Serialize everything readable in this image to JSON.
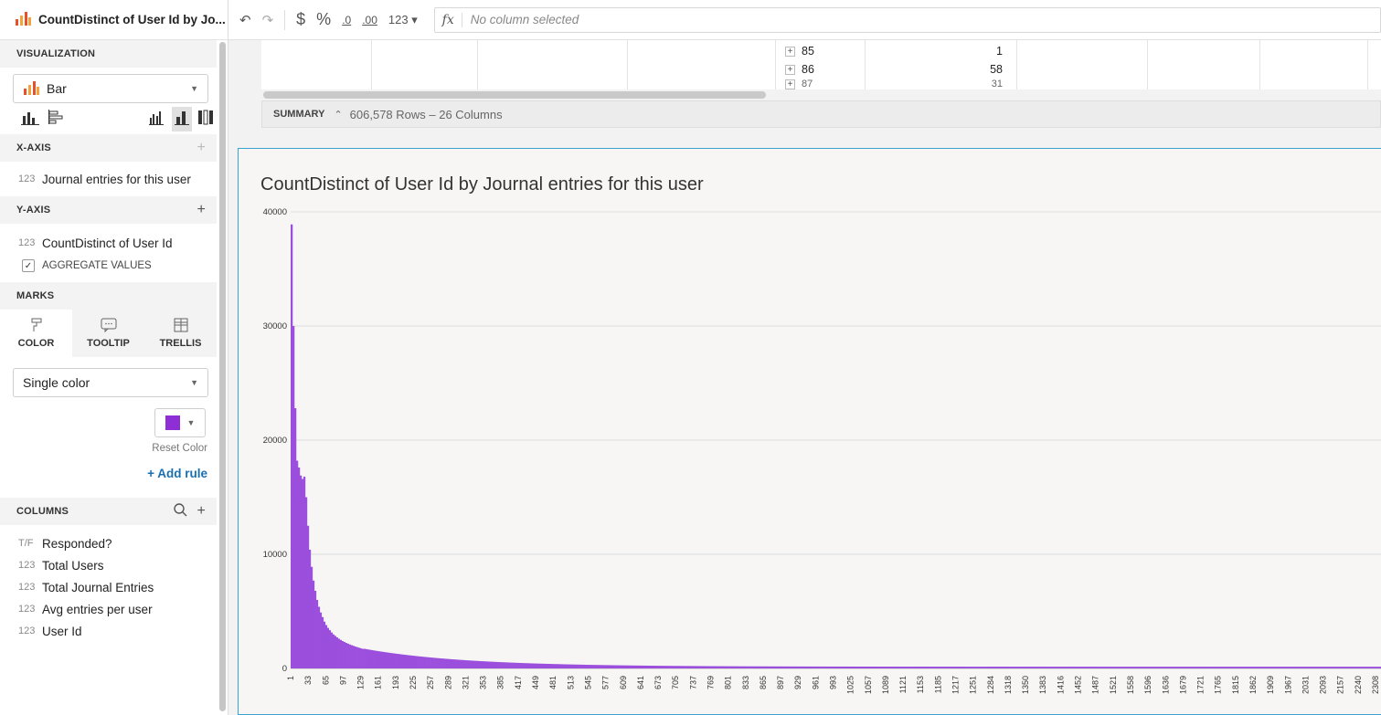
{
  "panel": {
    "title": "CountDistinct of User Id by Jo...",
    "visualization_label": "VISUALIZATION",
    "chart_type": "Bar",
    "xaxis_label": "X-AXIS",
    "xaxis_field": "Journal entries for this user",
    "yaxis_label": "Y-AXIS",
    "yaxis_field": "CountDistinct of User Id",
    "aggregate_label": "AGGREGATE VALUES",
    "marks_label": "MARKS",
    "tabs": [
      "COLOR",
      "TOOLTIP",
      "TRELLIS"
    ],
    "color_mode": "Single color",
    "color_hex": "#8e2fd6",
    "reset_color": "Reset Color",
    "add_rule": "+ Add rule",
    "columns_label": "COLUMNS",
    "columns": [
      {
        "type": "T/F",
        "name": "Responded?"
      },
      {
        "type": "123",
        "name": "Total Users"
      },
      {
        "type": "123",
        "name": "Total Journal Entries"
      },
      {
        "type": "123",
        "name": "Avg entries per user"
      },
      {
        "type": "123",
        "name": "User Id"
      }
    ],
    "type_num": "123"
  },
  "toolbar": {
    "undo": "↶",
    "redo": "↷",
    "currency": "$",
    "percent": "%",
    "dec_less": ".0",
    "dec_more": ".00",
    "number_format": "123 ▾",
    "fx": "fx",
    "formula_placeholder": "No column selected"
  },
  "table": {
    "rows": [
      {
        "key": "85",
        "value": "1"
      },
      {
        "key": "86",
        "value": "58"
      },
      {
        "key": "87",
        "value": "31"
      }
    ]
  },
  "summary": {
    "label": "SUMMARY",
    "text": "606,578 Rows – 26 Columns"
  },
  "chart_data": {
    "type": "bar",
    "title": "CountDistinct of User Id by Journal entries for this user",
    "xlabel": "",
    "ylabel": "",
    "ylim": [
      0,
      40000
    ],
    "yticks": [
      0,
      10000,
      20000,
      30000,
      40000
    ],
    "xtick_labels": [
      "1",
      "33",
      "65",
      "97",
      "129",
      "161",
      "193",
      "225",
      "257",
      "289",
      "321",
      "353",
      "385",
      "417",
      "449",
      "481",
      "513",
      "545",
      "577",
      "609",
      "641",
      "673",
      "705",
      "737",
      "769",
      "801",
      "833",
      "865",
      "897",
      "929",
      "961",
      "993",
      "1025",
      "1057",
      "1089",
      "1121",
      "1153",
      "1185",
      "1217",
      "1251",
      "1284",
      "1318",
      "1350",
      "1383",
      "1416",
      "1452",
      "1487",
      "1521",
      "1558",
      "1596",
      "1636",
      "1679",
      "1721",
      "1765",
      "1815",
      "1862",
      "1909",
      "1967",
      "2031",
      "2093",
      "2157",
      "2240",
      "2308"
    ],
    "bar_color": "#9b4fdc",
    "series": [
      {
        "x_start": 1,
        "values_head": [
          38900,
          30000,
          22800,
          18200,
          17600,
          16900,
          16600,
          16800,
          15000,
          12500,
          10400,
          8900,
          7700,
          6800,
          6000,
          5400,
          4900,
          4500,
          4100,
          3800,
          3550,
          3350,
          3150,
          2980,
          2850,
          2720,
          2600,
          2500,
          2400,
          2320,
          2240,
          2170,
          2100,
          2040,
          1980,
          1920,
          1870,
          1820,
          1770,
          1720
        ],
        "tail_note": "values decay gradually toward ~150 across remaining categories"
      }
    ],
    "grid": true
  }
}
